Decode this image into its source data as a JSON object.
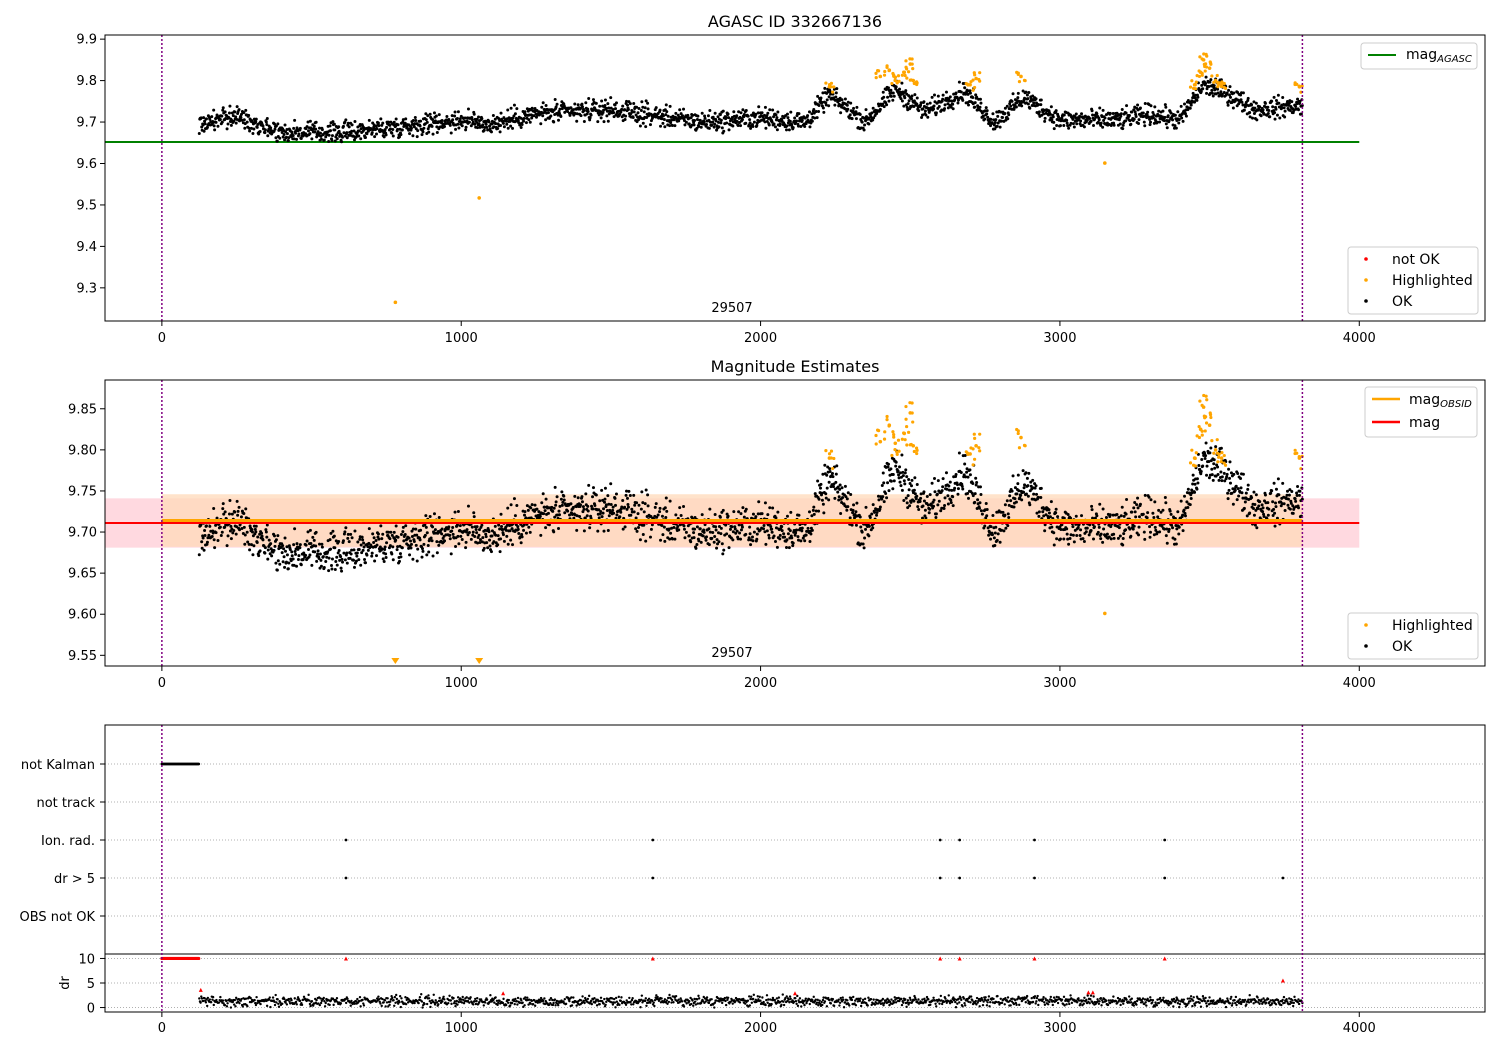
{
  "colors": {
    "ok": "#000000",
    "highlighted": "#ffa500",
    "not_ok": "#ff0000",
    "agasc_line": "#008000",
    "mag_line": "#ff0000",
    "mag_obsid_line": "#ffa500",
    "obs_boundary": "#800080",
    "band_pink": "#ffc0cb",
    "band_orange": "#ffdab9",
    "grid": "#b0b0b0"
  },
  "chart_data": [
    {
      "type": "scatter",
      "title": "AGASC ID 332667136",
      "xlim": [
        -190,
        4420
      ],
      "ylim": [
        9.22,
        9.91
      ],
      "xticks": [
        0,
        1000,
        2000,
        3000,
        4000
      ],
      "yticks": [
        9.3,
        9.4,
        9.5,
        9.6,
        9.7,
        9.8,
        9.9
      ],
      "obsid_label": "29507",
      "obs_boundaries": [
        0,
        3810
      ],
      "reference_lines": [
        {
          "name": "mag_AGASC",
          "y": 9.652,
          "xrange": [
            -190,
            4000
          ],
          "color": "#008000"
        }
      ],
      "legend_lines": [
        {
          "name": "mag",
          "sub": "AGASC",
          "color": "#008000"
        }
      ],
      "legend_points": [
        {
          "name": "not OK",
          "color": "#ff0000"
        },
        {
          "name": "Highlighted",
          "color": "#ffa500"
        },
        {
          "name": "OK",
          "color": "#000000"
        }
      ],
      "series": [
        {
          "name": "OK",
          "x_range": [
            125,
            3810
          ],
          "baseline": [
            [
              125,
              9.695
            ],
            [
              250,
              9.715
            ],
            [
              400,
              9.675
            ],
            [
              600,
              9.675
            ],
            [
              800,
              9.69
            ],
            [
              1000,
              9.705
            ],
            [
              1100,
              9.695
            ],
            [
              1250,
              9.72
            ],
            [
              1500,
              9.73
            ],
            [
              1800,
              9.7
            ],
            [
              2000,
              9.71
            ],
            [
              2150,
              9.7
            ],
            [
              2230,
              9.765
            ],
            [
              2350,
              9.7
            ],
            [
              2450,
              9.78
            ],
            [
              2550,
              9.725
            ],
            [
              2680,
              9.775
            ],
            [
              2780,
              9.7
            ],
            [
              2880,
              9.76
            ],
            [
              3000,
              9.705
            ],
            [
              3200,
              9.705
            ],
            [
              3300,
              9.72
            ],
            [
              3400,
              9.705
            ],
            [
              3480,
              9.79
            ],
            [
              3560,
              9.77
            ],
            [
              3650,
              9.73
            ],
            [
              3810,
              9.74
            ]
          ]
        },
        {
          "name": "Highlighted",
          "points": [
            [
              780,
              9.265
            ],
            [
              1060,
              9.517
            ],
            [
              3150,
              9.601
            ],
            [
              2400,
              9.81
            ],
            [
              2430,
              9.825
            ],
            [
              2450,
              9.808
            ],
            [
              2480,
              9.82
            ],
            [
              2500,
              9.84
            ],
            [
              2510,
              9.8
            ],
            [
              2700,
              9.79
            ],
            [
              2720,
              9.805
            ],
            [
              2870,
              9.81
            ],
            [
              3450,
              9.79
            ],
            [
              3470,
              9.82
            ],
            [
              3480,
              9.85
            ],
            [
              3500,
              9.83
            ],
            [
              3520,
              9.8
            ],
            [
              3540,
              9.79
            ],
            [
              2230,
              9.785
            ],
            [
              3800,
              9.785
            ]
          ]
        }
      ]
    },
    {
      "type": "scatter",
      "title": "Magnitude Estimates",
      "xlim": [
        -190,
        4420
      ],
      "ylim": [
        9.537,
        9.885
      ],
      "xticks": [
        0,
        1000,
        2000,
        3000,
        4000
      ],
      "yticks": [
        9.55,
        9.6,
        9.65,
        9.7,
        9.75,
        9.8,
        9.85
      ],
      "obsid_label": "29507",
      "obs_boundaries": [
        0,
        3810
      ],
      "mag": {
        "value": 9.711,
        "band": [
          9.681,
          9.741
        ],
        "xrange": [
          -190,
          4000
        ]
      },
      "mag_obsid": {
        "value": 9.714,
        "band": [
          9.682,
          9.746
        ],
        "xrange": [
          0,
          3810
        ]
      },
      "legend_lines": [
        {
          "name": "mag",
          "sub": "OBSID",
          "color": "#ffa500"
        },
        {
          "name": "mag",
          "sub": "",
          "color": "#ff0000"
        }
      ],
      "legend_points": [
        {
          "name": "Highlighted",
          "color": "#ffa500"
        },
        {
          "name": "OK",
          "color": "#000000"
        }
      ],
      "series": [
        {
          "name": "Highlighted",
          "points": [
            [
              3150,
              9.601
            ],
            [
              2400,
              9.81
            ],
            [
              2430,
              9.83
            ],
            [
              2450,
              9.808
            ],
            [
              2480,
              9.82
            ],
            [
              2500,
              9.845
            ],
            [
              2510,
              9.805
            ],
            [
              2700,
              9.795
            ],
            [
              2720,
              9.805
            ],
            [
              2870,
              9.815
            ],
            [
              3450,
              9.79
            ],
            [
              3470,
              9.825
            ],
            [
              3480,
              9.852
            ],
            [
              3500,
              9.83
            ],
            [
              3520,
              9.8
            ],
            [
              3540,
              9.79
            ],
            [
              2230,
              9.79
            ],
            [
              3800,
              9.79
            ]
          ]
        },
        {
          "name": "Highlighted (off-scale)",
          "points": [
            [
              780,
              9.54
            ],
            [
              1060,
              9.54
            ]
          ]
        }
      ]
    },
    {
      "type": "scatter",
      "title": "",
      "xlim": [
        -190,
        4420
      ],
      "obs_boundaries": [
        0,
        3810
      ],
      "flag_rows": [
        "not Kalman",
        "not track",
        "Ion. rad.",
        "dr > 5",
        "OBS not OK"
      ],
      "flag_points": {
        "not Kalman": {
          "x_range": [
            0,
            125
          ]
        },
        "not track": {
          "x": []
        },
        "Ion. rad.": {
          "x": [
            615,
            1640,
            2600,
            2665,
            2915,
            3350
          ]
        },
        "dr > 5": {
          "x": [
            615,
            1640,
            2600,
            2665,
            2915,
            3350,
            3745
          ]
        },
        "OBS not OK": {
          "x": []
        }
      },
      "dr": {
        "ylabel": "dr",
        "ylim": [
          -0.5,
          10.5
        ],
        "yticks": [
          0,
          5,
          10
        ],
        "not_ok_points": [
          [
            615,
            10
          ],
          [
            1640,
            10
          ],
          [
            2600,
            10
          ],
          [
            2665,
            10
          ],
          [
            2915,
            10
          ],
          [
            3350,
            10
          ],
          [
            3745,
            5.5
          ],
          [
            130,
            3.6
          ],
          [
            1140,
            2.9
          ],
          [
            2115,
            2.9
          ],
          [
            3095,
            3.1
          ],
          [
            3110,
            3.1
          ]
        ],
        "ok_range": [
          125,
          3810
        ],
        "ok_level": [
          0.2,
          2.5
        ]
      }
    }
  ]
}
